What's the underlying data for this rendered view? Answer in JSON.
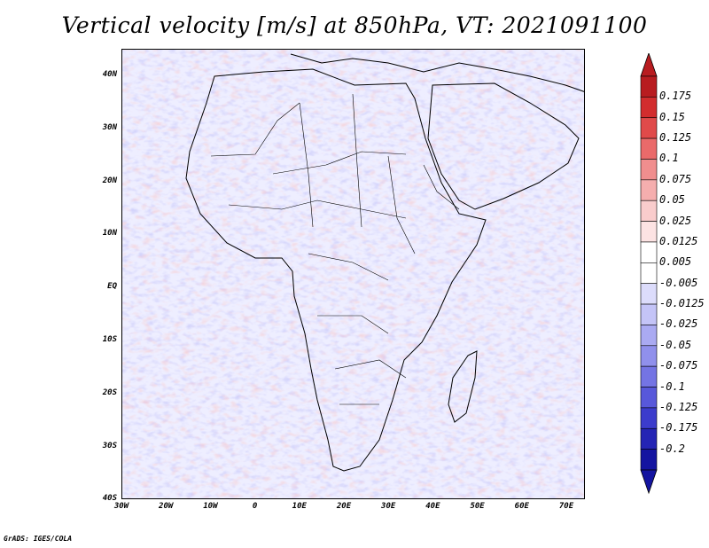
{
  "title": "Vertical velocity [m/s] at 850hPa, VT: 2021091100",
  "credit": "GrADS: IGES/COLA",
  "map": {
    "projection": "lat-lon",
    "lat_labels": [
      "40N",
      "30N",
      "20N",
      "10N",
      "EQ",
      "10S",
      "20S",
      "30S",
      "40S"
    ],
    "lon_labels": [
      "30W",
      "20W",
      "10W",
      "0",
      "10E",
      "20E",
      "30E",
      "40E",
      "50E",
      "60E",
      "70E"
    ]
  },
  "colorbar": {
    "levels": [
      "0.175",
      "0.15",
      "0.125",
      "0.1",
      "0.075",
      "0.05",
      "0.025",
      "0.0125",
      "0.005",
      "-0.005",
      "-0.0125",
      "-0.025",
      "-0.05",
      "-0.075",
      "-0.1",
      "-0.125",
      "-0.175",
      "-0.2"
    ],
    "colors": [
      "#b81c20",
      "#d22d2e",
      "#e04a4a",
      "#ea6a6a",
      "#f08e8e",
      "#f5aeae",
      "#f9cccc",
      "#fce3e3",
      "#ffffff",
      "#ffffff",
      "#dcdcfb",
      "#c4c4f7",
      "#aaaaf2",
      "#9090ec",
      "#7474e4",
      "#5858da",
      "#3c3ccc",
      "#2424b4",
      "#1414a0"
    ]
  }
}
